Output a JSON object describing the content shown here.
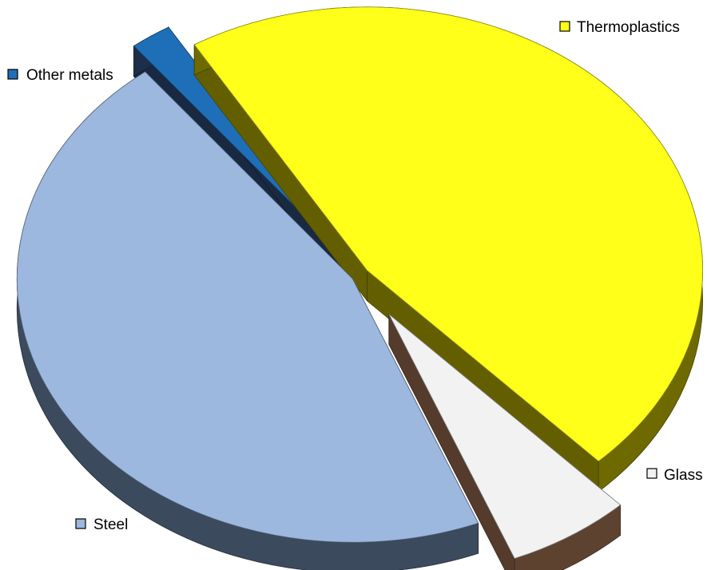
{
  "chart_data": {
    "type": "pie",
    "style": "3d-exploded",
    "title": "",
    "categories": [
      "Thermoplastics",
      "Glass",
      "Steel",
      "Other metals"
    ],
    "values": [
      46.5,
      6.0,
      45.5,
      2.0
    ],
    "unit": "percent",
    "colors": {
      "Thermoplastics": "#FFFF1A",
      "Glass": "#F2F2F2",
      "Steel": "#9CB8DE",
      "Other metals": "#1F6FB8"
    },
    "side_colors": {
      "Thermoplastics": "#6E6A00",
      "Glass": "#5E4230",
      "Steel": "#3C4A5E",
      "Other metals": "#1C2E48"
    },
    "legend_placement": "labels next to slices"
  }
}
